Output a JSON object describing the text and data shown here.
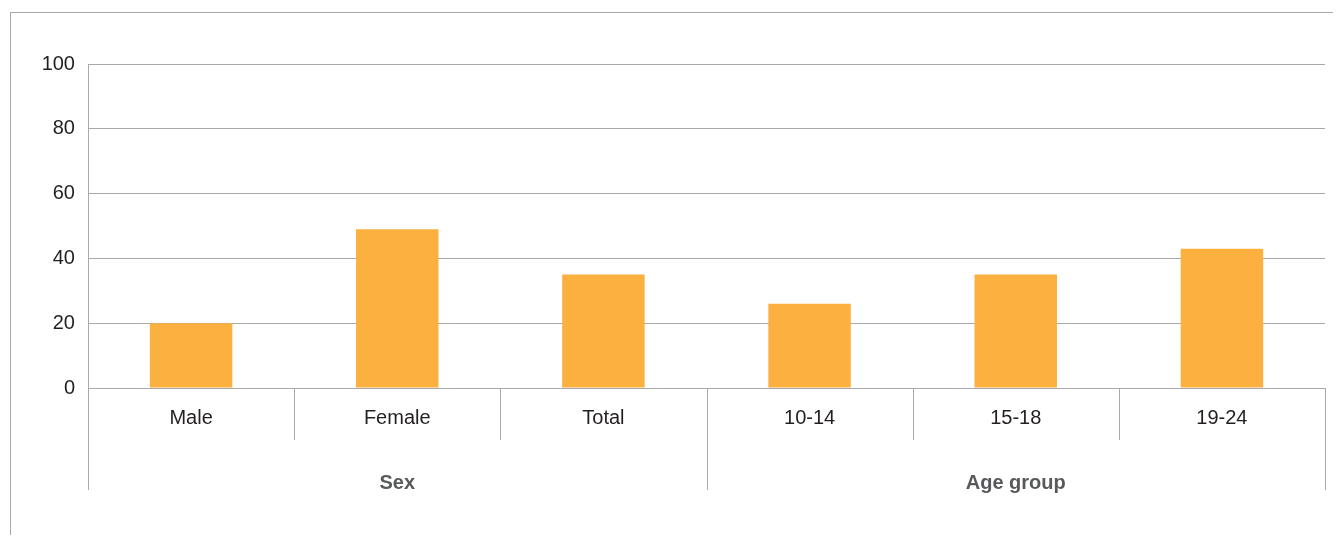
{
  "chart_data": {
    "type": "bar",
    "categories": [
      "Male",
      "Female",
      "Total",
      "10-14",
      "15-18",
      "19-24"
    ],
    "values": [
      20,
      49,
      35,
      26,
      35,
      43
    ],
    "color": "#fbb040",
    "ylim": [
      0,
      100
    ],
    "yticks": [
      0,
      20,
      40,
      60,
      80,
      100
    ],
    "grid": "y",
    "annotations": [
      "Sex",
      "Age group"
    ]
  }
}
